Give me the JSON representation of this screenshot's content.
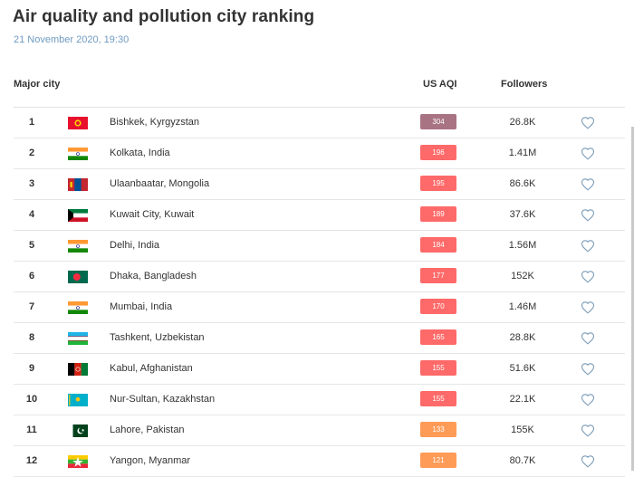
{
  "page": {
    "title": "Air quality and pollution city ranking",
    "subtitle": "21 November 2020, 19:30"
  },
  "table": {
    "headers": {
      "city": "Major city",
      "aqi": "US AQI",
      "followers": "Followers"
    },
    "rows": [
      {
        "rank": "1",
        "flag": "kyrgyzstan",
        "city": "Bishkek, Kyrgyzstan",
        "aqi": "304",
        "aqi_color": "#a87383",
        "followers": "26.8K"
      },
      {
        "rank": "2",
        "flag": "india",
        "city": "Kolkata, India",
        "aqi": "196",
        "aqi_color": "#fe6a69",
        "followers": "1.41M"
      },
      {
        "rank": "3",
        "flag": "mongolia",
        "city": "Ulaanbaatar, Mongolia",
        "aqi": "195",
        "aqi_color": "#fe6a69",
        "followers": "86.6K"
      },
      {
        "rank": "4",
        "flag": "kuwait",
        "city": "Kuwait City, Kuwait",
        "aqi": "189",
        "aqi_color": "#fe6a69",
        "followers": "37.6K"
      },
      {
        "rank": "5",
        "flag": "india",
        "city": "Delhi, India",
        "aqi": "184",
        "aqi_color": "#fe6a69",
        "followers": "1.56M"
      },
      {
        "rank": "6",
        "flag": "bangladesh",
        "city": "Dhaka, Bangladesh",
        "aqi": "177",
        "aqi_color": "#fe6a69",
        "followers": "152K"
      },
      {
        "rank": "7",
        "flag": "india",
        "city": "Mumbai, India",
        "aqi": "170",
        "aqi_color": "#fe6a69",
        "followers": "1.46M"
      },
      {
        "rank": "8",
        "flag": "uzbekistan",
        "city": "Tashkent, Uzbekistan",
        "aqi": "165",
        "aqi_color": "#fe6a69",
        "followers": "28.8K"
      },
      {
        "rank": "9",
        "flag": "afghanistan",
        "city": "Kabul, Afghanistan",
        "aqi": "155",
        "aqi_color": "#fe6a69",
        "followers": "51.6K"
      },
      {
        "rank": "10",
        "flag": "kazakhstan",
        "city": "Nur-Sultan, Kazakhstan",
        "aqi": "155",
        "aqi_color": "#fe6a69",
        "followers": "22.1K"
      },
      {
        "rank": "11",
        "flag": "pakistan",
        "city": "Lahore, Pakistan",
        "aqi": "133",
        "aqi_color": "#fe9b57",
        "followers": "155K"
      },
      {
        "rank": "12",
        "flag": "myanmar",
        "city": "Yangon, Myanmar",
        "aqi": "121",
        "aqi_color": "#fe9b57",
        "followers": "80.7K"
      }
    ]
  },
  "icons": {
    "follow": "heart-outline-icon"
  }
}
